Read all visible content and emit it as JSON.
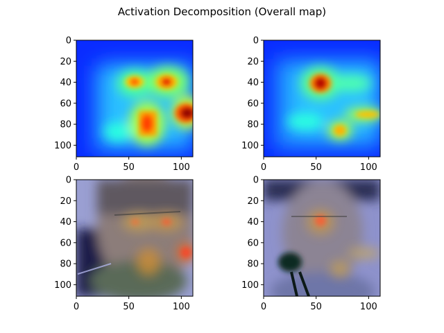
{
  "figure": {
    "title": "Activation Decomposition (Overall map)"
  },
  "chart_data": [
    {
      "type": "heatmap",
      "panel": "top-left",
      "content": "activation map",
      "colormap": "jet",
      "xlim": [
        0,
        111
      ],
      "ylim": [
        111,
        0
      ],
      "x_ticks": [
        0,
        50,
        100
      ],
      "y_ticks": [
        0,
        20,
        40,
        60,
        80,
        100
      ],
      "hotspots": [
        {
          "x": 55,
          "y": 40,
          "intensity": 0.85
        },
        {
          "x": 87,
          "y": 40,
          "intensity": 0.9
        },
        {
          "x": 68,
          "y": 80,
          "intensity": 0.85
        },
        {
          "x": 108,
          "y": 70,
          "intensity": 1.0
        }
      ]
    },
    {
      "type": "heatmap",
      "panel": "top-right",
      "content": "activation map",
      "colormap": "jet",
      "xlim": [
        0,
        111
      ],
      "ylim": [
        111,
        0
      ],
      "x_ticks": [
        0,
        50,
        100
      ],
      "y_ticks": [
        0,
        20,
        40,
        60,
        80,
        100
      ],
      "hotspots": [
        {
          "x": 55,
          "y": 40,
          "intensity": 1.0
        },
        {
          "x": 75,
          "y": 85,
          "intensity": 0.75
        },
        {
          "x": 105,
          "y": 70,
          "intensity": 0.7
        },
        {
          "x": 95,
          "y": 40,
          "intensity": 0.5
        }
      ]
    },
    {
      "type": "heatmap",
      "panel": "bottom-left",
      "content": "face image overlaid with activation map",
      "colormap": "jet",
      "xlim": [
        0,
        111
      ],
      "ylim": [
        111,
        0
      ],
      "x_ticks": [
        0,
        50,
        100
      ],
      "y_ticks": [
        0,
        20,
        40,
        60,
        80,
        100
      ]
    },
    {
      "type": "heatmap",
      "panel": "bottom-right",
      "content": "face image overlaid with activation map",
      "colormap": "jet",
      "xlim": [
        0,
        111
      ],
      "ylim": [
        111,
        0
      ],
      "x_ticks": [
        0,
        50,
        100
      ],
      "y_ticks": [
        0,
        20,
        40,
        60,
        80,
        100
      ]
    }
  ]
}
